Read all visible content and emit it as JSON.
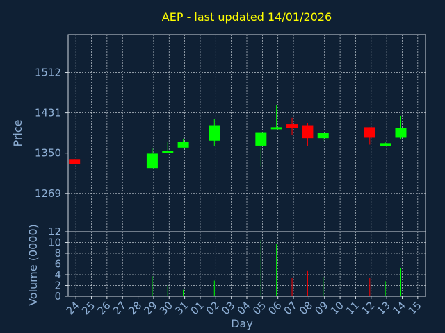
{
  "colors": {
    "background": "#0f2034",
    "title": "#ffff00",
    "text": "#8fb0d6",
    "axis": "#d0d8e0",
    "grid": "#c0c8d0",
    "up": "#00ff00",
    "down": "#ff0000"
  },
  "chart_data": {
    "type": "candlestick",
    "title": "AEP - last updated 14/01/2026",
    "xlabel": "Day",
    "ylabel": "Price",
    "volume_label": "Volume (0000)",
    "grid": true,
    "x_ticks": [
      "24",
      "25",
      "26",
      "27",
      "28",
      "29",
      "30",
      "31",
      "01",
      "02",
      "03",
      "04",
      "05",
      "06",
      "07",
      "08",
      "09",
      "10",
      "11",
      "12",
      "13",
      "14",
      "15"
    ],
    "price_ticks": [
      "1269",
      "1350",
      "1431",
      "1512"
    ],
    "price_tick_values": [
      1269,
      1350,
      1431,
      1512
    ],
    "price_range": [
      1192,
      1588
    ],
    "volume_ticks": [
      "0",
      "2",
      "4",
      "6",
      "8",
      "10",
      "12"
    ],
    "volume_tick_values": [
      0,
      2,
      4,
      6,
      8,
      10,
      12
    ],
    "volume_range": [
      0,
      12
    ],
    "candles": [
      {
        "day": "24",
        "open": 1338,
        "close": 1328,
        "high": 1338,
        "low": 1328,
        "volume": 0
      },
      {
        "day": "29",
        "open": 1320,
        "close": 1349,
        "high": 1359,
        "low": 1320,
        "volume": 3.7
      },
      {
        "day": "30",
        "open": 1350,
        "close": 1354,
        "high": 1372,
        "low": 1350,
        "volume": 2.0
      },
      {
        "day": "31",
        "open": 1361,
        "close": 1372,
        "high": 1379,
        "low": 1361,
        "volume": 1.2
      },
      {
        "day": "02",
        "open": 1375,
        "close": 1406,
        "high": 1418,
        "low": 1364,
        "volume": 2.9
      },
      {
        "day": "05",
        "open": 1365,
        "close": 1392,
        "high": 1392,
        "low": 1324,
        "volume": 10.5
      },
      {
        "day": "06",
        "open": 1398,
        "close": 1402,
        "high": 1446,
        "low": 1398,
        "volume": 9.8
      },
      {
        "day": "07",
        "open": 1408,
        "close": 1401,
        "high": 1421,
        "low": 1387,
        "volume": 3.4
      },
      {
        "day": "08",
        "open": 1406,
        "close": 1380,
        "high": 1410,
        "low": 1364,
        "volume": 4.8
      },
      {
        "day": "09",
        "open": 1380,
        "close": 1391,
        "high": 1391,
        "low": 1375,
        "volume": 3.6
      },
      {
        "day": "12",
        "open": 1402,
        "close": 1381,
        "high": 1402,
        "low": 1367,
        "volume": 3.4
      },
      {
        "day": "13",
        "open": 1364,
        "close": 1370,
        "high": 1373,
        "low": 1364,
        "volume": 2.8
      },
      {
        "day": "14",
        "open": 1381,
        "close": 1401,
        "high": 1425,
        "low": 1378,
        "volume": 5.2
      }
    ]
  }
}
